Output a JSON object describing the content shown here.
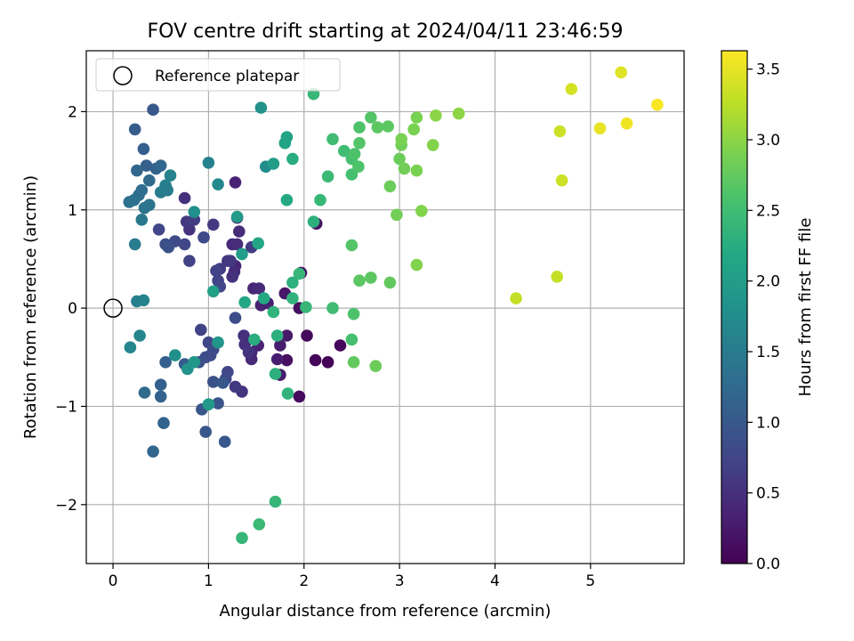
{
  "chart_data": {
    "type": "scatter",
    "title": "FOV centre drift starting at 2024/04/11 23:46:59",
    "xlabel": "Angular distance from reference (arcmin)",
    "ylabel": "Rotation from reference (arcmin)",
    "xlim": [
      -0.28,
      5.98
    ],
    "ylim": [
      -2.6,
      2.62
    ],
    "xticks": [
      0,
      1,
      2,
      3,
      4,
      5
    ],
    "yticks": [
      -2,
      -1,
      0,
      1,
      2
    ],
    "xtick_labels": [
      "0",
      "1",
      "2",
      "3",
      "4",
      "5"
    ],
    "ytick_labels": [
      "−2",
      "−1",
      "0",
      "1",
      "2"
    ],
    "grid": true,
    "legend": {
      "placement": "top-left",
      "entries": [
        "Reference platepar"
      ]
    },
    "reference_point": {
      "x": 0,
      "y": 0,
      "marker": "open-circle"
    },
    "colorbar": {
      "label": "Hours from first FF file",
      "colormap": "viridis",
      "range": [
        0.0,
        3.63
      ],
      "ticks": [
        0.0,
        0.5,
        1.0,
        1.5,
        2.0,
        2.5,
        3.0,
        3.5
      ],
      "tick_labels": [
        "0.0",
        "0.5",
        "1.0",
        "1.5",
        "2.0",
        "2.5",
        "3.0",
        "3.5"
      ]
    },
    "points": [
      {
        "x": 2.25,
        "y": -0.55,
        "c": 0.02
      },
      {
        "x": 2.12,
        "y": -0.53,
        "c": 0.05
      },
      {
        "x": 2.38,
        "y": -0.38,
        "c": 0.07
      },
      {
        "x": 2.03,
        "y": -0.28,
        "c": 0.08
      },
      {
        "x": 1.95,
        "y": -0.9,
        "c": 0.1
      },
      {
        "x": 1.95,
        "y": 0.0,
        "c": 0.12
      },
      {
        "x": 1.82,
        "y": -0.53,
        "c": 0.15
      },
      {
        "x": 2.13,
        "y": 0.86,
        "c": 0.18
      },
      {
        "x": 1.97,
        "y": 0.36,
        "c": 0.2
      },
      {
        "x": 1.8,
        "y": 0.15,
        "c": 0.22
      },
      {
        "x": 1.82,
        "y": -0.28,
        "c": 0.25
      },
      {
        "x": 1.75,
        "y": -0.68,
        "c": 0.27
      },
      {
        "x": 1.72,
        "y": -0.52,
        "c": 0.3
      },
      {
        "x": 1.75,
        "y": -0.38,
        "c": 0.3
      },
      {
        "x": 1.55,
        "y": 0.03,
        "c": 0.35
      },
      {
        "x": 1.62,
        "y": 0.05,
        "c": 0.32
      },
      {
        "x": 1.52,
        "y": -0.38,
        "c": 0.35
      },
      {
        "x": 1.45,
        "y": -0.45,
        "c": 0.4
      },
      {
        "x": 1.47,
        "y": 0.2,
        "c": 0.38
      },
      {
        "x": 1.53,
        "y": 0.2,
        "c": 0.45
      },
      {
        "x": 1.45,
        "y": -0.52,
        "c": 0.42
      },
      {
        "x": 1.28,
        "y": 1.28,
        "c": 0.35
      },
      {
        "x": 1.3,
        "y": 0.92,
        "c": 0.38
      },
      {
        "x": 1.32,
        "y": 0.78,
        "c": 0.45
      },
      {
        "x": 1.25,
        "y": 0.65,
        "c": 0.42
      },
      {
        "x": 1.3,
        "y": 0.65,
        "c": 0.48
      },
      {
        "x": 1.28,
        "y": 0.43,
        "c": 0.4
      },
      {
        "x": 1.27,
        "y": 0.37,
        "c": 0.45
      },
      {
        "x": 1.25,
        "y": 0.32,
        "c": 0.5
      },
      {
        "x": 1.2,
        "y": 0.48,
        "c": 0.55
      },
      {
        "x": 1.37,
        "y": -0.28,
        "c": 0.5
      },
      {
        "x": 1.38,
        "y": -0.37,
        "c": 0.5
      },
      {
        "x": 1.42,
        "y": -0.45,
        "c": 0.55
      },
      {
        "x": 1.35,
        "y": -0.85,
        "c": 0.55
      },
      {
        "x": 1.28,
        "y": -0.8,
        "c": 0.6
      },
      {
        "x": 1.23,
        "y": 0.48,
        "c": 0.6
      },
      {
        "x": 1.12,
        "y": 0.4,
        "c": 0.65
      },
      {
        "x": 1.08,
        "y": 0.38,
        "c": 0.7
      },
      {
        "x": 1.1,
        "y": 0.28,
        "c": 0.72
      },
      {
        "x": 1.12,
        "y": 0.22,
        "c": 0.75
      },
      {
        "x": 1.05,
        "y": 0.85,
        "c": 0.6
      },
      {
        "x": 1.45,
        "y": 0.62,
        "c": 0.65
      },
      {
        "x": 1.2,
        "y": -0.65,
        "c": 0.75
      },
      {
        "x": 1.18,
        "y": -0.72,
        "c": 0.8
      },
      {
        "x": 1.28,
        "y": -0.1,
        "c": 0.85
      },
      {
        "x": 0.75,
        "y": 1.12,
        "c": 0.5
      },
      {
        "x": 0.8,
        "y": 0.8,
        "c": 0.55
      },
      {
        "x": 0.77,
        "y": 0.88,
        "c": 0.6
      },
      {
        "x": 0.85,
        "y": 0.9,
        "c": 0.65
      },
      {
        "x": 0.8,
        "y": 0.48,
        "c": 0.7
      },
      {
        "x": 0.75,
        "y": 0.65,
        "c": 0.75
      },
      {
        "x": 0.65,
        "y": 0.68,
        "c": 0.8
      },
      {
        "x": 0.55,
        "y": 0.65,
        "c": 0.85
      },
      {
        "x": 0.58,
        "y": 0.62,
        "c": 0.9
      },
      {
        "x": 0.48,
        "y": 0.8,
        "c": 0.75
      },
      {
        "x": 0.95,
        "y": 0.72,
        "c": 0.8
      },
      {
        "x": 0.92,
        "y": -0.22,
        "c": 0.7
      },
      {
        "x": 1.0,
        "y": -0.35,
        "c": 0.75
      },
      {
        "x": 1.05,
        "y": -0.42,
        "c": 0.8
      },
      {
        "x": 1.02,
        "y": -0.48,
        "c": 0.82
      },
      {
        "x": 0.97,
        "y": -0.5,
        "c": 0.85
      },
      {
        "x": 0.9,
        "y": -0.55,
        "c": 0.9
      },
      {
        "x": 1.05,
        "y": -0.75,
        "c": 0.9
      },
      {
        "x": 1.1,
        "y": -0.97,
        "c": 0.95
      },
      {
        "x": 0.93,
        "y": -1.03,
        "c": 0.95
      },
      {
        "x": 0.97,
        "y": -1.26,
        "c": 1.0
      },
      {
        "x": 1.17,
        "y": -1.36,
        "c": 1.0
      },
      {
        "x": 1.15,
        "y": -0.76,
        "c": 1.0
      },
      {
        "x": 0.75,
        "y": -0.57,
        "c": 1.05
      },
      {
        "x": 0.55,
        "y": -0.55,
        "c": 1.1
      },
      {
        "x": 0.5,
        "y": -0.78,
        "c": 1.1
      },
      {
        "x": 0.5,
        "y": -0.9,
        "c": 1.15
      },
      {
        "x": 0.53,
        "y": -1.17,
        "c": 1.15
      },
      {
        "x": 0.42,
        "y": -1.46,
        "c": 1.2
      },
      {
        "x": 0.33,
        "y": -0.86,
        "c": 1.25
      },
      {
        "x": 0.42,
        "y": 2.02,
        "c": 1.0
      },
      {
        "x": 0.23,
        "y": 1.82,
        "c": 1.05
      },
      {
        "x": 0.32,
        "y": 1.62,
        "c": 1.1
      },
      {
        "x": 0.35,
        "y": 1.45,
        "c": 1.1
      },
      {
        "x": 0.45,
        "y": 1.42,
        "c": 1.15
      },
      {
        "x": 0.5,
        "y": 1.45,
        "c": 1.2
      },
      {
        "x": 0.25,
        "y": 1.4,
        "c": 1.2
      },
      {
        "x": 0.38,
        "y": 1.3,
        "c": 1.25
      },
      {
        "x": 0.3,
        "y": 1.2,
        "c": 1.3
      },
      {
        "x": 0.27,
        "y": 1.15,
        "c": 1.3
      },
      {
        "x": 0.22,
        "y": 1.1,
        "c": 1.35
      },
      {
        "x": 0.17,
        "y": 1.08,
        "c": 1.35
      },
      {
        "x": 0.33,
        "y": 1.02,
        "c": 1.4
      },
      {
        "x": 0.38,
        "y": 1.05,
        "c": 1.4
      },
      {
        "x": 0.3,
        "y": 0.9,
        "c": 1.45
      },
      {
        "x": 0.5,
        "y": 1.18,
        "c": 1.5
      },
      {
        "x": 0.55,
        "y": 1.25,
        "c": 1.55
      },
      {
        "x": 0.57,
        "y": 1.2,
        "c": 1.5
      },
      {
        "x": 0.6,
        "y": 1.35,
        "c": 1.6
      },
      {
        "x": 0.23,
        "y": 0.65,
        "c": 1.5
      },
      {
        "x": 0.25,
        "y": 0.07,
        "c": 1.55
      },
      {
        "x": 0.32,
        "y": 0.08,
        "c": 1.6
      },
      {
        "x": 0.28,
        "y": -0.28,
        "c": 1.65
      },
      {
        "x": 0.18,
        "y": -0.4,
        "c": 1.65
      },
      {
        "x": 1.0,
        "y": 1.48,
        "c": 1.6
      },
      {
        "x": 1.1,
        "y": 1.26,
        "c": 1.7
      },
      {
        "x": 1.6,
        "y": 1.44,
        "c": 1.75
      },
      {
        "x": 1.55,
        "y": 2.04,
        "c": 1.85
      },
      {
        "x": 0.85,
        "y": 0.98,
        "c": 1.8
      },
      {
        "x": 0.65,
        "y": -0.48,
        "c": 1.8
      },
      {
        "x": 0.78,
        "y": -0.62,
        "c": 1.85
      },
      {
        "x": 0.85,
        "y": -0.55,
        "c": 1.9
      },
      {
        "x": 1.1,
        "y": -0.35,
        "c": 1.9
      },
      {
        "x": 1.0,
        "y": -0.98,
        "c": 1.95
      },
      {
        "x": 1.3,
        "y": 0.93,
        "c": 1.95
      },
      {
        "x": 1.35,
        "y": 0.55,
        "c": 2.0
      },
      {
        "x": 1.05,
        "y": 0.17,
        "c": 2.05
      },
      {
        "x": 1.68,
        "y": 1.47,
        "c": 2.0
      },
      {
        "x": 1.8,
        "y": 1.68,
        "c": 2.1
      },
      {
        "x": 1.82,
        "y": 1.74,
        "c": 2.1
      },
      {
        "x": 1.82,
        "y": 1.1,
        "c": 2.2
      },
      {
        "x": 1.88,
        "y": 1.52,
        "c": 2.25
      },
      {
        "x": 1.52,
        "y": 0.66,
        "c": 2.15
      },
      {
        "x": 1.58,
        "y": 0.1,
        "c": 2.2
      },
      {
        "x": 1.38,
        "y": 0.06,
        "c": 2.15
      },
      {
        "x": 1.48,
        "y": -0.32,
        "c": 2.25
      },
      {
        "x": 1.72,
        "y": -0.28,
        "c": 2.3
      },
      {
        "x": 1.7,
        "y": -0.67,
        "c": 2.3
      },
      {
        "x": 1.83,
        "y": -0.87,
        "c": 2.35
      },
      {
        "x": 1.88,
        "y": 0.26,
        "c": 2.3
      },
      {
        "x": 1.88,
        "y": 0.1,
        "c": 2.35
      },
      {
        "x": 1.68,
        "y": -0.04,
        "c": 2.35
      },
      {
        "x": 1.95,
        "y": 0.35,
        "c": 2.4
      },
      {
        "x": 2.02,
        "y": 0.01,
        "c": 2.4
      },
      {
        "x": 1.7,
        "y": -1.97,
        "c": 2.4
      },
      {
        "x": 1.53,
        "y": -2.2,
        "c": 2.45
      },
      {
        "x": 1.35,
        "y": -2.34,
        "c": 2.4
      },
      {
        "x": 2.1,
        "y": 2.18,
        "c": 2.4
      },
      {
        "x": 2.1,
        "y": 0.88,
        "c": 2.3
      },
      {
        "x": 2.17,
        "y": 1.1,
        "c": 2.4
      },
      {
        "x": 2.25,
        "y": 1.34,
        "c": 2.45
      },
      {
        "x": 2.3,
        "y": 1.72,
        "c": 2.5
      },
      {
        "x": 2.42,
        "y": 1.6,
        "c": 2.5
      },
      {
        "x": 2.5,
        "y": 1.52,
        "c": 2.55
      },
      {
        "x": 2.53,
        "y": 1.57,
        "c": 2.6
      },
      {
        "x": 2.5,
        "y": 1.36,
        "c": 2.55
      },
      {
        "x": 2.57,
        "y": 1.44,
        "c": 2.6
      },
      {
        "x": 2.58,
        "y": 1.68,
        "c": 2.65
      },
      {
        "x": 2.58,
        "y": 1.84,
        "c": 2.6
      },
      {
        "x": 2.7,
        "y": 1.94,
        "c": 2.65
      },
      {
        "x": 2.77,
        "y": 1.84,
        "c": 2.7
      },
      {
        "x": 2.88,
        "y": 1.85,
        "c": 2.7
      },
      {
        "x": 2.3,
        "y": 0.0,
        "c": 2.5
      },
      {
        "x": 2.5,
        "y": -0.32,
        "c": 2.55
      },
      {
        "x": 2.52,
        "y": -0.06,
        "c": 2.6
      },
      {
        "x": 2.5,
        "y": 0.64,
        "c": 2.65
      },
      {
        "x": 2.58,
        "y": 0.28,
        "c": 2.7
      },
      {
        "x": 2.7,
        "y": 0.31,
        "c": 2.7
      },
      {
        "x": 2.52,
        "y": -0.55,
        "c": 2.75
      },
      {
        "x": 2.75,
        "y": -0.59,
        "c": 2.8
      },
      {
        "x": 2.9,
        "y": 0.26,
        "c": 2.75
      },
      {
        "x": 2.9,
        "y": 1.24,
        "c": 2.8
      },
      {
        "x": 2.97,
        "y": 0.95,
        "c": 2.85
      },
      {
        "x": 3.0,
        "y": 1.52,
        "c": 2.8
      },
      {
        "x": 3.02,
        "y": 1.66,
        "c": 2.85
      },
      {
        "x": 3.02,
        "y": 1.72,
        "c": 2.9
      },
      {
        "x": 3.05,
        "y": 1.42,
        "c": 2.85
      },
      {
        "x": 3.15,
        "y": 1.82,
        "c": 2.9
      },
      {
        "x": 3.18,
        "y": 1.94,
        "c": 2.9
      },
      {
        "x": 3.18,
        "y": 1.4,
        "c": 2.9
      },
      {
        "x": 3.23,
        "y": 0.99,
        "c": 2.95
      },
      {
        "x": 3.18,
        "y": 0.44,
        "c": 2.95
      },
      {
        "x": 3.35,
        "y": 1.66,
        "c": 2.95
      },
      {
        "x": 3.38,
        "y": 1.96,
        "c": 3.0
      },
      {
        "x": 3.62,
        "y": 1.98,
        "c": 3.0
      },
      {
        "x": 4.22,
        "y": 0.1,
        "c": 3.3
      },
      {
        "x": 4.65,
        "y": 0.32,
        "c": 3.3
      },
      {
        "x": 4.68,
        "y": 1.8,
        "c": 3.35
      },
      {
        "x": 4.7,
        "y": 1.3,
        "c": 3.35
      },
      {
        "x": 4.8,
        "y": 2.23,
        "c": 3.4
      },
      {
        "x": 5.1,
        "y": 1.83,
        "c": 3.5
      },
      {
        "x": 5.32,
        "y": 2.4,
        "c": 3.45
      },
      {
        "x": 5.38,
        "y": 1.88,
        "c": 3.55
      },
      {
        "x": 5.7,
        "y": 2.07,
        "c": 3.6
      }
    ]
  }
}
